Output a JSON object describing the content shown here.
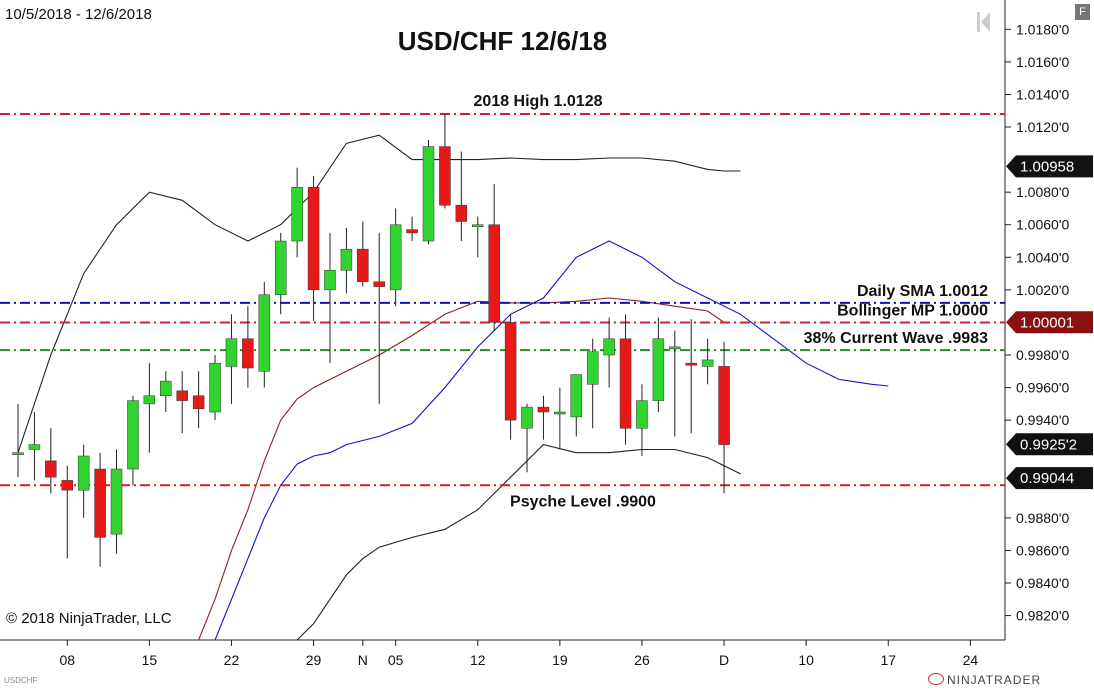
{
  "header": {
    "date_range": "10/5/2018 - 12/6/2018",
    "symbol": "USDCHF",
    "copyright": "© 2018 NinjaTrader, LLC",
    "brand": "NINJATRADER",
    "f_button": "F"
  },
  "chart_data": {
    "type": "candlestick",
    "title": "USD/CHF 12/6/18",
    "xlabel": "",
    "ylabel": "",
    "ylim": [
      0.9805,
      1.0198
    ],
    "y_ticks": [
      "1.0180'0",
      "1.0160'0",
      "1.0140'0",
      "1.0120'0",
      "1.0080'0",
      "1.0060'0",
      "1.0040'0",
      "1.0020'0",
      "0.9980'0",
      "0.9960'0",
      "0.9940'0",
      "0.9880'0",
      "0.9860'0",
      "0.9840'0",
      "0.9820'0"
    ],
    "y_tick_values": [
      1.018,
      1.016,
      1.014,
      1.012,
      1.008,
      1.006,
      1.004,
      1.002,
      0.998,
      0.996,
      0.994,
      0.988,
      0.986,
      0.984,
      0.982
    ],
    "x_ticks": [
      {
        "label": "08",
        "day": 3
      },
      {
        "label": "15",
        "day": 8
      },
      {
        "label": "22",
        "day": 13
      },
      {
        "label": "29",
        "day": 18
      },
      {
        "label": "N",
        "day": 21
      },
      {
        "label": "05",
        "day": 23
      },
      {
        "label": "12",
        "day": 28
      },
      {
        "label": "19",
        "day": 33
      },
      {
        "label": "26",
        "day": 38
      },
      {
        "label": "D",
        "day": 43
      },
      {
        "label": "10",
        "day": 48
      },
      {
        "label": "17",
        "day": 53
      },
      {
        "label": "24",
        "day": 58
      }
    ],
    "grid": false,
    "candles": [
      {
        "o": 0.992,
        "h": 0.995,
        "l": 0.9905,
        "c": 0.992
      },
      {
        "o": 0.9922,
        "h": 0.9945,
        "l": 0.9903,
        "c": 0.9925
      },
      {
        "o": 0.9915,
        "h": 0.9935,
        "l": 0.9895,
        "c": 0.9905
      },
      {
        "o": 0.9903,
        "h": 0.9912,
        "l": 0.9855,
        "c": 0.9897
      },
      {
        "o": 0.9897,
        "h": 0.9925,
        "l": 0.988,
        "c": 0.9918
      },
      {
        "o": 0.991,
        "h": 0.992,
        "l": 0.985,
        "c": 0.9868
      },
      {
        "o": 0.987,
        "h": 0.9922,
        "l": 0.9858,
        "c": 0.991
      },
      {
        "o": 0.991,
        "h": 0.9955,
        "l": 0.99,
        "c": 0.9952
      },
      {
        "o": 0.995,
        "h": 0.9975,
        "l": 0.992,
        "c": 0.9955
      },
      {
        "o": 0.9955,
        "h": 0.997,
        "l": 0.9945,
        "c": 0.9964
      },
      {
        "o": 0.9958,
        "h": 0.997,
        "l": 0.9932,
        "c": 0.9952
      },
      {
        "o": 0.9955,
        "h": 0.997,
        "l": 0.9935,
        "c": 0.9947
      },
      {
        "o": 0.9945,
        "h": 0.998,
        "l": 0.994,
        "c": 0.9975
      },
      {
        "o": 0.9973,
        "h": 1.0005,
        "l": 0.995,
        "c": 0.999
      },
      {
        "o": 0.999,
        "h": 1.001,
        "l": 0.996,
        "c": 0.9972
      },
      {
        "o": 0.997,
        "h": 1.0025,
        "l": 0.996,
        "c": 1.0017
      },
      {
        "o": 1.0017,
        "h": 1.0055,
        "l": 1.0005,
        "c": 1.005
      },
      {
        "o": 1.005,
        "h": 1.0095,
        "l": 1.004,
        "c": 1.0083
      },
      {
        "o": 1.0083,
        "h": 1.009,
        "l": 1.0001,
        "c": 1.002
      },
      {
        "o": 1.002,
        "h": 1.0055,
        "l": 0.9975,
        "c": 1.0032
      },
      {
        "o": 1.0032,
        "h": 1.0058,
        "l": 1.0018,
        "c": 1.0045
      },
      {
        "o": 1.0045,
        "h": 1.0062,
        "l": 1.0022,
        "c": 1.0025
      },
      {
        "o": 1.0025,
        "h": 1.0055,
        "l": 0.995,
        "c": 1.0022
      },
      {
        "o": 1.002,
        "h": 1.007,
        "l": 1.001,
        "c": 1.006
      },
      {
        "o": 1.0057,
        "h": 1.0065,
        "l": 1.005,
        "c": 1.0055
      },
      {
        "o": 1.005,
        "h": 1.0112,
        "l": 1.0048,
        "c": 1.0108
      },
      {
        "o": 1.0108,
        "h": 1.0128,
        "l": 1.007,
        "c": 1.0072
      },
      {
        "o": 1.0072,
        "h": 1.0105,
        "l": 1.005,
        "c": 1.0062
      },
      {
        "o": 1.006,
        "h": 1.0065,
        "l": 1.004,
        "c": 1.006
      },
      {
        "o": 1.006,
        "h": 1.0085,
        "l": 0.9995,
        "c": 1.0
      },
      {
        "o": 1.0,
        "h": 1.0005,
        "l": 0.9928,
        "c": 0.994
      },
      {
        "o": 0.9935,
        "h": 0.995,
        "l": 0.9908,
        "c": 0.9948
      },
      {
        "o": 0.9948,
        "h": 0.9955,
        "l": 0.9928,
        "c": 0.9945
      },
      {
        "o": 0.9945,
        "h": 0.996,
        "l": 0.9922,
        "c": 0.9945
      },
      {
        "o": 0.9942,
        "h": 0.9968,
        "l": 0.993,
        "c": 0.9968
      },
      {
        "o": 0.9962,
        "h": 0.999,
        "l": 0.9935,
        "c": 0.9982
      },
      {
        "o": 0.998,
        "h": 1.0003,
        "l": 0.996,
        "c": 0.999
      },
      {
        "o": 0.999,
        "h": 1.0005,
        "l": 0.9925,
        "c": 0.9935
      },
      {
        "o": 0.9935,
        "h": 0.9962,
        "l": 0.9918,
        "c": 0.9952
      },
      {
        "o": 0.9952,
        "h": 1.0003,
        "l": 0.9945,
        "c": 0.999
      },
      {
        "o": 0.9985,
        "h": 0.9995,
        "l": 0.993,
        "c": 0.9985
      },
      {
        "o": 0.9975,
        "h": 1.0002,
        "l": 0.9932,
        "c": 0.9974
      },
      {
        "o": 0.9973,
        "h": 0.999,
        "l": 0.9962,
        "c": 0.9977
      },
      {
        "o": 0.9973,
        "h": 0.9988,
        "l": 0.9895,
        "c": 0.9925
      }
    ],
    "series": [
      {
        "name": "",
        "color": "#222222",
        "x": [
          0,
          2,
          4,
          6,
          8,
          10,
          12,
          14,
          16,
          18,
          20,
          22,
          24,
          26,
          28,
          30,
          32,
          34,
          36,
          38,
          40,
          42,
          43,
          44
        ],
        "values": [
          0.992,
          0.998,
          1.003,
          1.006,
          1.008,
          1.0075,
          1.006,
          1.005,
          1.006,
          1.008,
          1.011,
          1.0115,
          1.01,
          1.01,
          1.01,
          1.0101,
          1.01,
          1.01,
          1.0101,
          1.0101,
          1.0099,
          1.0094,
          1.0093,
          1.0093
        ]
      },
      {
        "name": "",
        "color": "#222222",
        "x": [
          17,
          18,
          20,
          21,
          22,
          24,
          26,
          28,
          30,
          32,
          34,
          36,
          38,
          40,
          42,
          43,
          44
        ],
        "values": [
          0.9805,
          0.9815,
          0.9845,
          0.9855,
          0.9862,
          0.9868,
          0.9873,
          0.9885,
          0.9905,
          0.9925,
          0.992,
          0.992,
          0.9922,
          0.9922,
          0.9917,
          0.9912,
          0.9907
        ]
      },
      {
        "name": "",
        "color": "#8b2020",
        "x": [
          11,
          12,
          13,
          14,
          15,
          16,
          17,
          18,
          20,
          22,
          24,
          26,
          28,
          30,
          32,
          34,
          36,
          38,
          40,
          42,
          43
        ],
        "values": [
          0.9805,
          0.983,
          0.986,
          0.9885,
          0.9915,
          0.994,
          0.9953,
          0.996,
          0.997,
          0.998,
          0.9992,
          1.0005,
          1.0013,
          1.0012,
          1.0012,
          1.0013,
          1.0015,
          1.0013,
          1.001,
          1.0007,
          1.0
        ]
      },
      {
        "name": "",
        "color": "#1010d0",
        "x": [
          12,
          13,
          14,
          15,
          16,
          17,
          18,
          19,
          20,
          22,
          24,
          26,
          28,
          30,
          32,
          34,
          36,
          38,
          40,
          42,
          44,
          46,
          48,
          50,
          52,
          53
        ],
        "values": [
          0.9805,
          0.983,
          0.9855,
          0.988,
          0.99,
          0.9913,
          0.9918,
          0.992,
          0.9925,
          0.993,
          0.9938,
          0.996,
          0.9985,
          1.0005,
          1.0015,
          1.004,
          1.005,
          1.004,
          1.0025,
          1.0015,
          1.0005,
          0.999,
          0.9975,
          0.9965,
          0.9962,
          0.9961
        ]
      }
    ],
    "levels": [
      {
        "value": 1.0128,
        "color": "#d42020",
        "label": "2018 High 1.0128",
        "label_pos": "above-center"
      },
      {
        "value": 1.0012,
        "color": "#1010c0",
        "label": "Daily SMA  1.0012",
        "label_pos": "above-right"
      },
      {
        "value": 1.0,
        "color": "#d42020",
        "label": "Bollinger MP 1.0000",
        "label_pos": "above-right"
      },
      {
        "value": 0.9983,
        "color": "#2a8a2a",
        "label": "38% Current Wave .9983",
        "label_pos": "above-right"
      },
      {
        "value": 0.99,
        "color": "#d42020",
        "label": "Psyche Level .9900",
        "label_pos": "below-center"
      }
    ],
    "price_badges": [
      {
        "value": 1.00958,
        "text": "1.00958",
        "style": "dark"
      },
      {
        "value": 1.00001,
        "text": "1.00001",
        "style": "red"
      },
      {
        "value": 0.99252,
        "text": "0.9925'2",
        "style": "dark"
      },
      {
        "value": 0.99044,
        "text": "0.99044",
        "style": "dark"
      }
    ]
  }
}
